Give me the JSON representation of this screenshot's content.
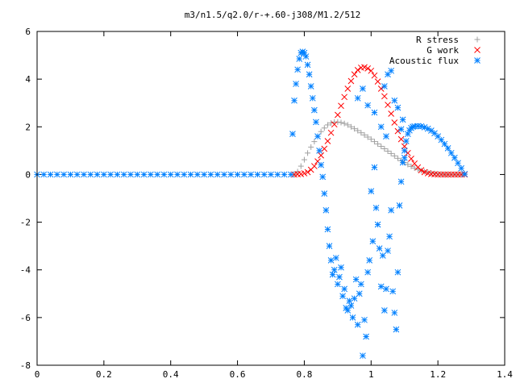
{
  "chart_data": {
    "type": "scatter",
    "title": "m3/n1.5/q2.0/r-+.60-j308/M1.2/512",
    "xlabel": "",
    "ylabel": "",
    "xlim": [
      0,
      1.4
    ],
    "ylim": [
      -8,
      6
    ],
    "xticks": [
      "0",
      "0.2",
      "0.4",
      "0.6",
      "0.8",
      "1",
      "1.2",
      "1.4"
    ],
    "yticks": [
      "6",
      "4",
      "2",
      "0",
      "-2",
      "-4",
      "-6",
      "-8"
    ],
    "grid": false,
    "legend_position": "top-right",
    "series": [
      {
        "name": "R stress",
        "marker": "+",
        "color": "#a0a0a0",
        "points": [
          [
            0.77,
            0.0
          ],
          [
            0.78,
            0.12
          ],
          [
            0.79,
            0.35
          ],
          [
            0.8,
            0.62
          ],
          [
            0.81,
            0.9
          ],
          [
            0.82,
            1.15
          ],
          [
            0.83,
            1.38
          ],
          [
            0.84,
            1.6
          ],
          [
            0.85,
            1.8
          ],
          [
            0.86,
            1.95
          ],
          [
            0.87,
            2.08
          ],
          [
            0.88,
            2.16
          ],
          [
            0.89,
            2.2
          ],
          [
            0.9,
            2.2
          ],
          [
            0.91,
            2.18
          ],
          [
            0.92,
            2.14
          ],
          [
            0.93,
            2.08
          ],
          [
            0.94,
            2.0
          ],
          [
            0.95,
            1.92
          ],
          [
            0.96,
            1.84
          ],
          [
            0.97,
            1.75
          ],
          [
            0.98,
            1.66
          ],
          [
            0.99,
            1.57
          ],
          [
            1.0,
            1.48
          ],
          [
            1.01,
            1.38
          ],
          [
            1.02,
            1.28
          ],
          [
            1.03,
            1.18
          ],
          [
            1.04,
            1.08
          ],
          [
            1.05,
            0.98
          ],
          [
            1.06,
            0.88
          ],
          [
            1.07,
            0.78
          ],
          [
            1.08,
            0.68
          ],
          [
            1.09,
            0.58
          ],
          [
            1.1,
            0.5
          ],
          [
            1.11,
            0.42
          ],
          [
            1.12,
            0.34
          ],
          [
            1.13,
            0.27
          ],
          [
            1.14,
            0.21
          ],
          [
            1.15,
            0.16
          ],
          [
            1.16,
            0.12
          ],
          [
            1.17,
            0.09
          ],
          [
            1.18,
            0.06
          ],
          [
            1.19,
            0.04
          ],
          [
            1.2,
            0.02
          ],
          [
            1.21,
            0.01
          ],
          [
            1.22,
            0.0
          ],
          [
            1.23,
            0.0
          ],
          [
            1.24,
            0.0
          ],
          [
            1.25,
            0.0
          ],
          [
            1.26,
            0.0
          ],
          [
            1.27,
            0.0
          ],
          [
            1.28,
            0.0
          ]
        ]
      },
      {
        "name": "G work",
        "marker": "x",
        "color": "#ff0000",
        "points": [
          [
            0.77,
            0.0
          ],
          [
            0.78,
            0.01
          ],
          [
            0.79,
            0.02
          ],
          [
            0.8,
            0.05
          ],
          [
            0.81,
            0.1
          ],
          [
            0.82,
            0.2
          ],
          [
            0.83,
            0.35
          ],
          [
            0.84,
            0.55
          ],
          [
            0.85,
            0.8
          ],
          [
            0.86,
            1.08
          ],
          [
            0.87,
            1.4
          ],
          [
            0.88,
            1.75
          ],
          [
            0.89,
            2.1
          ],
          [
            0.9,
            2.5
          ],
          [
            0.91,
            2.88
          ],
          [
            0.92,
            3.25
          ],
          [
            0.93,
            3.6
          ],
          [
            0.94,
            3.92
          ],
          [
            0.95,
            4.2
          ],
          [
            0.96,
            4.38
          ],
          [
            0.97,
            4.48
          ],
          [
            0.98,
            4.5
          ],
          [
            0.99,
            4.45
          ],
          [
            1.0,
            4.35
          ],
          [
            1.01,
            4.15
          ],
          [
            1.02,
            3.9
          ],
          [
            1.03,
            3.6
          ],
          [
            1.04,
            3.28
          ],
          [
            1.05,
            2.92
          ],
          [
            1.06,
            2.55
          ],
          [
            1.07,
            2.18
          ],
          [
            1.08,
            1.82
          ],
          [
            1.09,
            1.48
          ],
          [
            1.1,
            1.18
          ],
          [
            1.11,
            0.9
          ],
          [
            1.12,
            0.66
          ],
          [
            1.13,
            0.46
          ],
          [
            1.14,
            0.3
          ],
          [
            1.15,
            0.18
          ],
          [
            1.16,
            0.1
          ],
          [
            1.17,
            0.05
          ],
          [
            1.18,
            0.02
          ],
          [
            1.19,
            0.01
          ],
          [
            1.2,
            0.0
          ],
          [
            1.21,
            0.0
          ],
          [
            1.22,
            0.0
          ],
          [
            1.23,
            0.0
          ],
          [
            1.24,
            0.0
          ],
          [
            1.25,
            0.0
          ],
          [
            1.26,
            0.0
          ],
          [
            1.27,
            0.0
          ],
          [
            1.28,
            0.0
          ]
        ]
      },
      {
        "name": "Acoustic flux",
        "marker": "*",
        "color": "#0080ff",
        "points": [
          [
            0.0,
            0.0
          ],
          [
            0.02,
            0.0
          ],
          [
            0.04,
            0.0
          ],
          [
            0.06,
            0.0
          ],
          [
            0.08,
            0.0
          ],
          [
            0.1,
            0.0
          ],
          [
            0.12,
            0.0
          ],
          [
            0.14,
            0.0
          ],
          [
            0.16,
            0.0
          ],
          [
            0.18,
            0.0
          ],
          [
            0.2,
            0.0
          ],
          [
            0.22,
            0.0
          ],
          [
            0.24,
            0.0
          ],
          [
            0.26,
            0.0
          ],
          [
            0.28,
            0.0
          ],
          [
            0.3,
            0.0
          ],
          [
            0.32,
            0.0
          ],
          [
            0.34,
            0.0
          ],
          [
            0.36,
            0.0
          ],
          [
            0.38,
            0.0
          ],
          [
            0.4,
            0.0
          ],
          [
            0.42,
            0.0
          ],
          [
            0.44,
            0.0
          ],
          [
            0.46,
            0.0
          ],
          [
            0.48,
            0.0
          ],
          [
            0.5,
            0.0
          ],
          [
            0.52,
            0.0
          ],
          [
            0.54,
            0.0
          ],
          [
            0.56,
            0.0
          ],
          [
            0.58,
            0.0
          ],
          [
            0.6,
            0.0
          ],
          [
            0.62,
            0.0
          ],
          [
            0.64,
            0.0
          ],
          [
            0.66,
            0.0
          ],
          [
            0.68,
            0.0
          ],
          [
            0.7,
            0.0
          ],
          [
            0.72,
            0.0
          ],
          [
            0.74,
            0.0
          ],
          [
            0.76,
            0.0
          ],
          [
            0.765,
            1.7
          ],
          [
            0.77,
            3.1
          ],
          [
            0.775,
            3.8
          ],
          [
            0.78,
            4.4
          ],
          [
            0.785,
            4.85
          ],
          [
            0.79,
            5.1
          ],
          [
            0.795,
            5.15
          ],
          [
            0.8,
            5.1
          ],
          [
            0.805,
            4.95
          ],
          [
            0.81,
            4.6
          ],
          [
            0.815,
            4.2
          ],
          [
            0.82,
            3.7
          ],
          [
            0.825,
            3.2
          ],
          [
            0.83,
            2.7
          ],
          [
            0.835,
            2.2
          ],
          [
            0.84,
            1.6
          ],
          [
            0.845,
            1.0
          ],
          [
            0.85,
            0.4
          ],
          [
            0.855,
            -0.1
          ],
          [
            0.86,
            -0.8
          ],
          [
            0.865,
            -1.5
          ],
          [
            0.87,
            -2.3
          ],
          [
            0.875,
            -3.0
          ],
          [
            0.88,
            -3.6
          ],
          [
            0.885,
            -4.2
          ],
          [
            0.89,
            -4.0
          ],
          [
            0.895,
            -3.5
          ],
          [
            0.9,
            -4.6
          ],
          [
            0.905,
            -4.3
          ],
          [
            0.91,
            -3.9
          ],
          [
            0.915,
            -5.1
          ],
          [
            0.92,
            -4.8
          ],
          [
            0.925,
            -5.6
          ],
          [
            0.93,
            -5.7
          ],
          [
            0.935,
            -5.3
          ],
          [
            0.94,
            -5.5
          ],
          [
            0.945,
            -6.0
          ],
          [
            0.95,
            -5.2
          ],
          [
            0.955,
            -4.4
          ],
          [
            0.96,
            -6.3
          ],
          [
            0.965,
            -5.0
          ],
          [
            0.97,
            -4.6
          ],
          [
            0.975,
            -7.6
          ],
          [
            0.98,
            -6.1
          ],
          [
            0.985,
            -6.8
          ],
          [
            0.99,
            -4.1
          ],
          [
            0.995,
            -3.6
          ],
          [
            1.0,
            -0.7
          ],
          [
            1.005,
            -2.8
          ],
          [
            1.01,
            0.3
          ],
          [
            1.015,
            -1.4
          ],
          [
            1.02,
            -2.1
          ],
          [
            1.025,
            -3.1
          ],
          [
            1.03,
            -4.7
          ],
          [
            1.035,
            -3.4
          ],
          [
            1.04,
            -5.7
          ],
          [
            1.045,
            -4.8
          ],
          [
            1.05,
            -3.2
          ],
          [
            1.055,
            -2.6
          ],
          [
            1.06,
            -1.5
          ],
          [
            1.065,
            -4.9
          ],
          [
            1.07,
            -5.8
          ],
          [
            1.075,
            -6.5
          ],
          [
            1.08,
            -4.1
          ],
          [
            1.085,
            -1.3
          ],
          [
            1.09,
            -0.3
          ],
          [
            1.095,
            0.5
          ],
          [
            1.1,
            1.0
          ],
          [
            1.105,
            1.4
          ],
          [
            1.11,
            1.7
          ],
          [
            1.115,
            1.85
          ],
          [
            1.12,
            1.95
          ],
          [
            1.125,
            2.0
          ],
          [
            1.13,
            2.02
          ],
          [
            1.14,
            2.03
          ],
          [
            1.15,
            2.02
          ],
          [
            1.16,
            1.98
          ],
          [
            1.17,
            1.92
          ],
          [
            1.18,
            1.84
          ],
          [
            1.19,
            1.73
          ],
          [
            1.2,
            1.6
          ],
          [
            1.21,
            1.45
          ],
          [
            1.22,
            1.28
          ],
          [
            1.23,
            1.1
          ],
          [
            1.24,
            0.9
          ],
          [
            1.25,
            0.7
          ],
          [
            1.26,
            0.48
          ],
          [
            1.27,
            0.26
          ],
          [
            1.28,
            0.02
          ],
          [
            0.96,
            3.2
          ],
          [
            0.975,
            3.6
          ],
          [
            0.99,
            2.9
          ],
          [
            1.01,
            2.6
          ],
          [
            1.03,
            2.0
          ],
          [
            1.04,
            3.7
          ],
          [
            1.05,
            4.2
          ],
          [
            1.06,
            4.35
          ],
          [
            1.07,
            3.1
          ],
          [
            1.08,
            2.8
          ],
          [
            1.09,
            1.9
          ],
          [
            1.1,
            0.7
          ],
          [
            1.045,
            1.6
          ],
          [
            1.095,
            2.3
          ]
        ]
      }
    ]
  }
}
